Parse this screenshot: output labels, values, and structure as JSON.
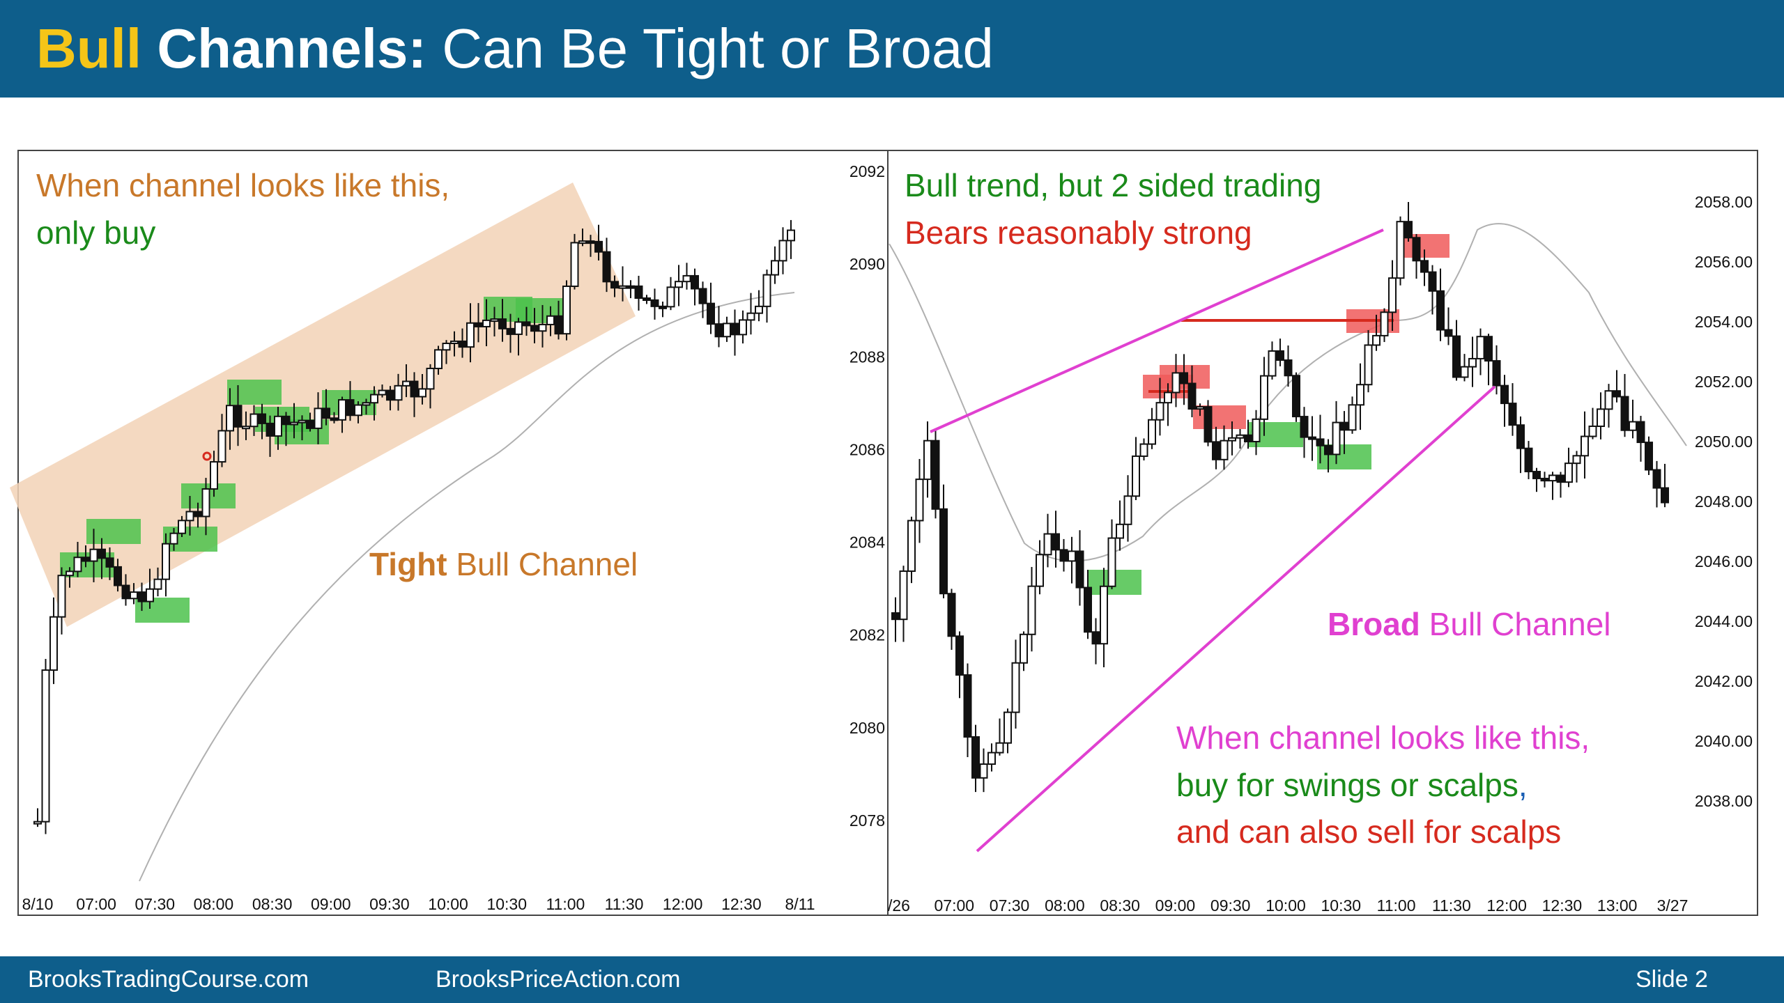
{
  "title": {
    "part1": "Bull",
    "part2": "Channels:",
    "part3": "Can Be Tight or Broad"
  },
  "footer": {
    "left": "BrooksTradingCourse.com",
    "center": "BrooksPriceAction.com",
    "slide": "Slide  2"
  },
  "colors": {
    "header": "#0e5e8b",
    "bull_yellow": "#f5c518",
    "orange_text": "#c8782a",
    "green_text": "#1a8a1a",
    "red_text": "#d62a1e",
    "magenta": "#e040d0",
    "channel_fill": "#f2d2b6",
    "buy_box": "#4cc24c",
    "sell_box": "#f05a5a"
  },
  "left_chart": {
    "annotation_line1": "When channel looks like this,",
    "annotation_line2": "only buy",
    "label_bold": "Tight",
    "label_rest": " Bull Channel",
    "x_labels": [
      "8/10",
      "07:00",
      "07:30",
      "08:00",
      "08:30",
      "09:00",
      "09:30",
      "10:00",
      "10:30",
      "11:00",
      "11:30",
      "12:00",
      "12:30",
      "8/11"
    ]
  },
  "right_chart": {
    "annotation_line1": "Bull trend, but 2 sided trading",
    "annotation_line2": "Bears reasonably strong",
    "label_bold": "Broad",
    "label_rest": " Bull Channel",
    "bottom_line1": "When channel looks like this,",
    "bottom_line2a": "buy for swings or scalps",
    "bottom_line2b": ",",
    "bottom_line3": "and can also sell for scalps",
    "left_axis": [
      "2092",
      "2090",
      "2088",
      "2086",
      "2084",
      "2082",
      "2080",
      "2078"
    ],
    "right_axis": [
      "2058.00",
      "2056.00",
      "2054.00",
      "2052.00",
      "2050.00",
      "2048.00",
      "2046.00",
      "2044.00",
      "2042.00",
      "2040.00",
      "2038.00"
    ],
    "x_labels": [
      "/26",
      "07:00",
      "07:30",
      "08:00",
      "08:30",
      "09:00",
      "09:30",
      "10:00",
      "10:30",
      "11:00",
      "11:30",
      "12:00",
      "12:30",
      "13:00",
      "3/27"
    ]
  },
  "chart_data": [
    {
      "type": "candlestick",
      "x": [
        "8/10",
        "07:00",
        "07:30",
        "08:00",
        "08:30",
        "09:00",
        "09:30",
        "10:00",
        "10:30",
        "11:00",
        "11:30",
        "12:00",
        "12:30",
        "8/11"
      ],
      "xlabel": "",
      "ylabel": "",
      "grid": false,
      "annotations": [
        "When channel looks like this,",
        "only buy",
        "Tight Bull Channel"
      ]
    },
    {
      "type": "candlestick",
      "x": [
        "/26",
        "07:00",
        "07:30",
        "08:00",
        "08:30",
        "09:00",
        "09:30",
        "10:00",
        "10:30",
        "11:00",
        "11:30",
        "12:00",
        "12:30",
        "13:00",
        "3/27"
      ],
      "y_left": [
        2092,
        2090,
        2088,
        2086,
        2084,
        2082,
        2080,
        2078
      ],
      "y_right": [
        2058.0,
        2056.0,
        2054.0,
        2052.0,
        2050.0,
        2048.0,
        2046.0,
        2044.0,
        2042.0,
        2040.0,
        2038.0
      ],
      "xlabel": "",
      "ylabel": "",
      "grid": false,
      "annotations": [
        "Bull trend, but 2 sided trading",
        "Bears reasonably strong",
        "Broad Bull Channel",
        "When channel looks like this,",
        "buy for swings or scalps",
        "and can also sell for scalps"
      ]
    }
  ]
}
